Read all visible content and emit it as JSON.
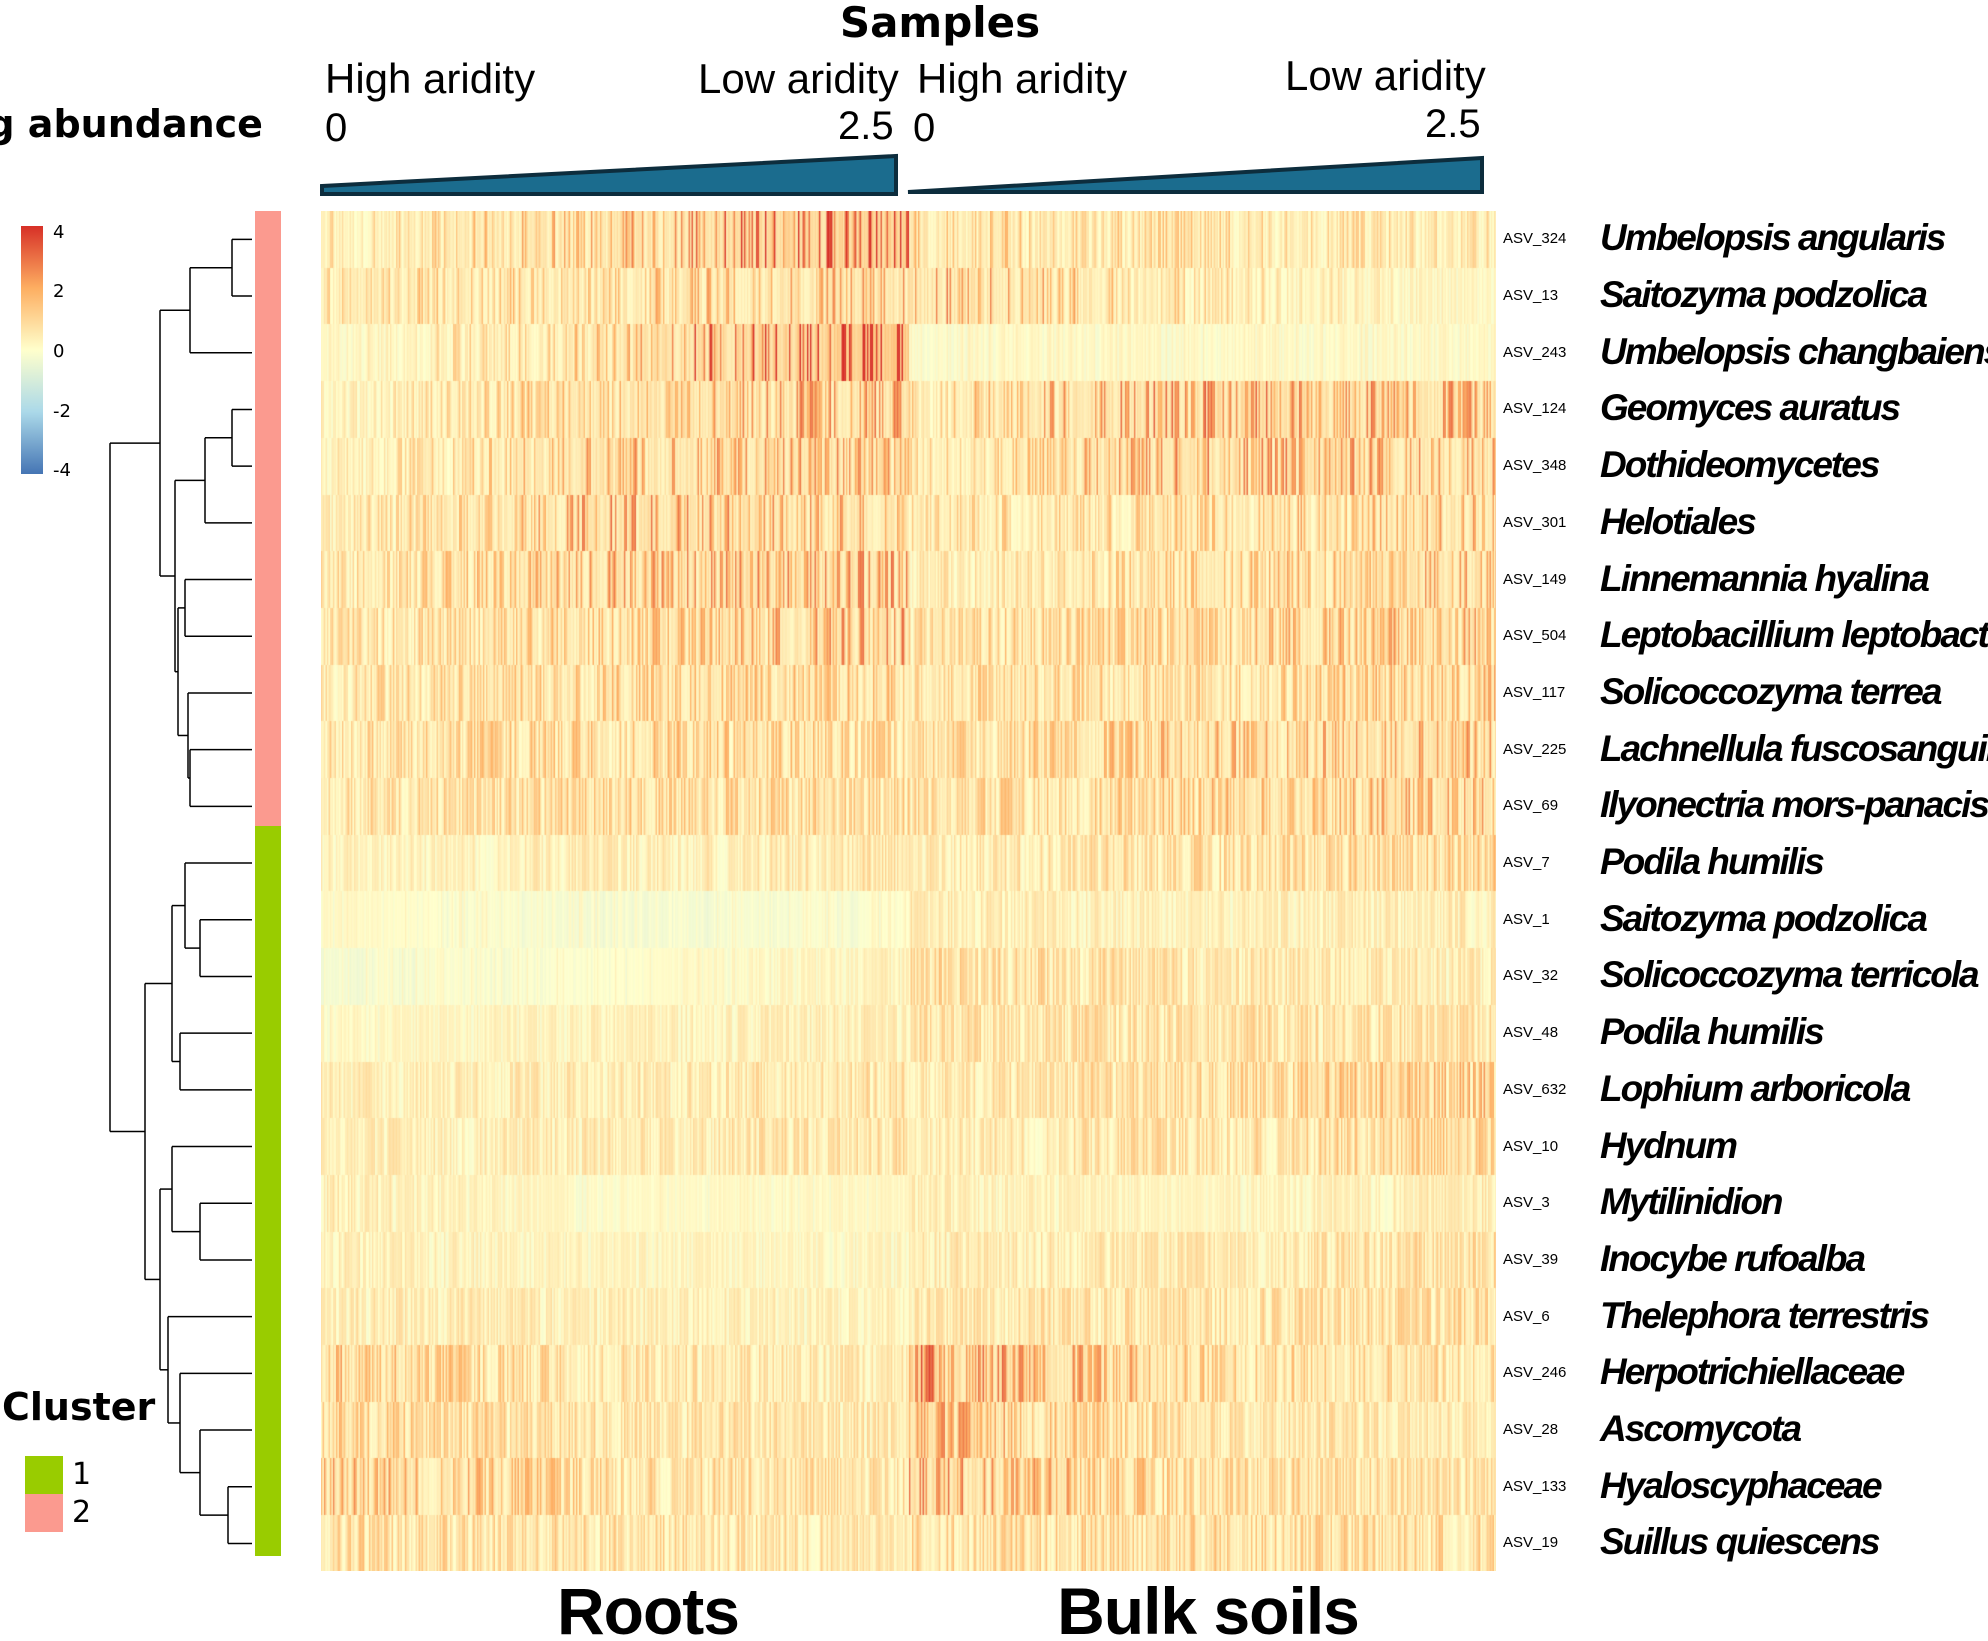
{
  "chart_data": {
    "type": "heatmap",
    "title": "Samples",
    "legend": {
      "title": "Log abundance",
      "ticks": [
        4,
        2,
        0,
        -2,
        -4
      ],
      "range": [
        -4,
        4
      ],
      "colors": [
        "#4575b4",
        "#abd9e9",
        "#ffffcc",
        "#fdae61",
        "#d73027"
      ]
    },
    "aridity_gradient": [
      {
        "left_label": "High aridity",
        "right_label": "Low aridity",
        "min_label": "0",
        "max_label": "2.5"
      },
      {
        "left_label": "High aridity",
        "right_label": "Low aridity",
        "min_label": "0",
        "max_label": "2.5"
      }
    ],
    "panels": [
      "Roots",
      "Bulk soils"
    ],
    "cluster_legend": {
      "title": "Cluster",
      "items": [
        {
          "label": "1",
          "color": "#99cc00"
        },
        {
          "label": "2",
          "color": "#fb9a8f"
        }
      ]
    },
    "rows": [
      {
        "asv": "ASV_324",
        "taxon": "Umbelopsis angularis",
        "cluster": 2
      },
      {
        "asv": "ASV_13",
        "taxon": "Saitozyma podzolica",
        "cluster": 2
      },
      {
        "asv": "ASV_243",
        "taxon": "Umbelopsis changbaiensis",
        "cluster": 2
      },
      {
        "asv": "ASV_124",
        "taxon": "Geomyces auratus",
        "cluster": 2
      },
      {
        "asv": "ASV_348",
        "taxon": "Dothideomycetes",
        "cluster": 2
      },
      {
        "asv": "ASV_301",
        "taxon": "Helotiales",
        "cluster": 2
      },
      {
        "asv": "ASV_149",
        "taxon": "Linnemannia hyalina",
        "cluster": 2
      },
      {
        "asv": "ASV_504",
        "taxon": "Leptobacillium leptobactrum",
        "cluster": 2
      },
      {
        "asv": "ASV_117",
        "taxon": "Solicoccozyma terrea",
        "cluster": 2
      },
      {
        "asv": "ASV_225",
        "taxon": "Lachnellula fuscosanguinea",
        "cluster": 2
      },
      {
        "asv": "ASV_69",
        "taxon": "Ilyonectria mors-panacis",
        "cluster": 2
      },
      {
        "asv": "ASV_7",
        "taxon": "Podila humilis",
        "cluster": 1
      },
      {
        "asv": "ASV_1",
        "taxon": "Saitozyma podzolica",
        "cluster": 1
      },
      {
        "asv": "ASV_32",
        "taxon": "Solicoccozyma terricola",
        "cluster": 1
      },
      {
        "asv": "ASV_48",
        "taxon": "Podila humilis",
        "cluster": 1
      },
      {
        "asv": "ASV_632",
        "taxon": "Lophium arboricola",
        "cluster": 1
      },
      {
        "asv": "ASV_10",
        "taxon": "Hydnum",
        "cluster": 1
      },
      {
        "asv": "ASV_3",
        "taxon": "Mytilinidion",
        "cluster": 1
      },
      {
        "asv": "ASV_39",
        "taxon": "Inocybe rufoalba",
        "cluster": 1
      },
      {
        "asv": "ASV_6",
        "taxon": "Thelephora terrestris",
        "cluster": 1
      },
      {
        "asv": "ASV_246",
        "taxon": "Herpotrichiellaceae",
        "cluster": 1
      },
      {
        "asv": "ASV_28",
        "taxon": "Ascomycota",
        "cluster": 1
      },
      {
        "asv": "ASV_133",
        "taxon": "Hyaloscyphaceae",
        "cluster": 1
      },
      {
        "asv": "ASV_19",
        "taxon": "Suillus quiescens",
        "cluster": 1
      }
    ],
    "row_profiles": [
      {
        "asv": "ASV_324",
        "roots": [
          0.8,
          1.5,
          3.2
        ],
        "soils": [
          1.2,
          1.0,
          0.7
        ],
        "density": 0.25
      },
      {
        "asv": "ASV_13",
        "roots": [
          1.2,
          1.2,
          1.6
        ],
        "soils": [
          1.8,
          0.9,
          0.2
        ],
        "density": 0.25
      },
      {
        "asv": "ASV_243",
        "roots": [
          0.2,
          1.5,
          3.8
        ],
        "soils": [
          0.2,
          0.2,
          0.2
        ],
        "density": 0.2
      },
      {
        "asv": "ASV_124",
        "roots": [
          0.4,
          1.5,
          1.8
        ],
        "soils": [
          1.0,
          2.0,
          1.6
        ],
        "density": 0.3
      },
      {
        "asv": "ASV_348",
        "roots": [
          0.5,
          1.6,
          1.6
        ],
        "soils": [
          0.8,
          1.8,
          1.6
        ],
        "density": 0.3
      },
      {
        "asv": "ASV_301",
        "roots": [
          0.6,
          1.8,
          1.5
        ],
        "soils": [
          0.8,
          1.2,
          1.5
        ],
        "density": 0.3
      },
      {
        "asv": "ASV_149",
        "roots": [
          0.8,
          1.6,
          1.8
        ],
        "soils": [
          0.6,
          1.2,
          1.6
        ],
        "density": 0.3
      },
      {
        "asv": "ASV_504",
        "roots": [
          0.8,
          1.2,
          1.8
        ],
        "soils": [
          0.9,
          1.3,
          1.5
        ],
        "density": 0.35
      },
      {
        "asv": "ASV_117",
        "roots": [
          0.8,
          1.2,
          1.2
        ],
        "soils": [
          1.0,
          1.1,
          1.4
        ],
        "density": 0.35
      },
      {
        "asv": "ASV_225",
        "roots": [
          0.9,
          1.2,
          1.1
        ],
        "soils": [
          0.9,
          1.4,
          1.6
        ],
        "density": 0.35
      },
      {
        "asv": "ASV_69",
        "roots": [
          0.8,
          1.1,
          1.0
        ],
        "soils": [
          0.9,
          1.3,
          1.5
        ],
        "density": 0.35
      },
      {
        "asv": "ASV_7",
        "roots": [
          0.4,
          0.5,
          0.7
        ],
        "soils": [
          0.6,
          0.9,
          1.1
        ],
        "density": 0.4
      },
      {
        "asv": "ASV_1",
        "roots": [
          0.2,
          -0.3,
          0.0
        ],
        "soils": [
          0.6,
          0.4,
          0.6
        ],
        "density": 0.45
      },
      {
        "asv": "ASV_32",
        "roots": [
          -0.2,
          0.0,
          0.4
        ],
        "soils": [
          1.0,
          0.7,
          0.6
        ],
        "density": 0.45
      },
      {
        "asv": "ASV_48",
        "roots": [
          0.2,
          0.4,
          0.5
        ],
        "soils": [
          0.8,
          0.8,
          0.8
        ],
        "density": 0.45
      },
      {
        "asv": "ASV_632",
        "roots": [
          0.5,
          0.6,
          0.8
        ],
        "soils": [
          0.6,
          1.0,
          1.4
        ],
        "density": 0.4
      },
      {
        "asv": "ASV_10",
        "roots": [
          0.5,
          0.6,
          0.8
        ],
        "soils": [
          0.6,
          0.8,
          1.2
        ],
        "density": 0.4
      },
      {
        "asv": "ASV_3",
        "roots": [
          0.6,
          0.1,
          0.2
        ],
        "soils": [
          0.5,
          0.3,
          0.6
        ],
        "density": 0.45
      },
      {
        "asv": "ASV_39",
        "roots": [
          0.5,
          0.3,
          0.3
        ],
        "soils": [
          0.6,
          0.6,
          0.9
        ],
        "density": 0.45
      },
      {
        "asv": "ASV_6",
        "roots": [
          0.6,
          0.5,
          0.4
        ],
        "soils": [
          0.7,
          0.8,
          1.0
        ],
        "density": 0.45
      },
      {
        "asv": "ASV_246",
        "roots": [
          1.4,
          0.8,
          0.6
        ],
        "soils": [
          2.2,
          1.1,
          0.9
        ],
        "density": 0.35
      },
      {
        "asv": "ASV_28",
        "roots": [
          1.2,
          0.8,
          0.7
        ],
        "soils": [
          1.8,
          0.8,
          0.6
        ],
        "density": 0.4
      },
      {
        "asv": "ASV_133",
        "roots": [
          1.6,
          1.0,
          0.8
        ],
        "soils": [
          1.9,
          1.0,
          0.8
        ],
        "density": 0.4
      },
      {
        "asv": "ASV_19",
        "roots": [
          1.0,
          0.9,
          0.8
        ],
        "soils": [
          1.0,
          1.0,
          1.0
        ],
        "density": 0.35
      }
    ]
  }
}
